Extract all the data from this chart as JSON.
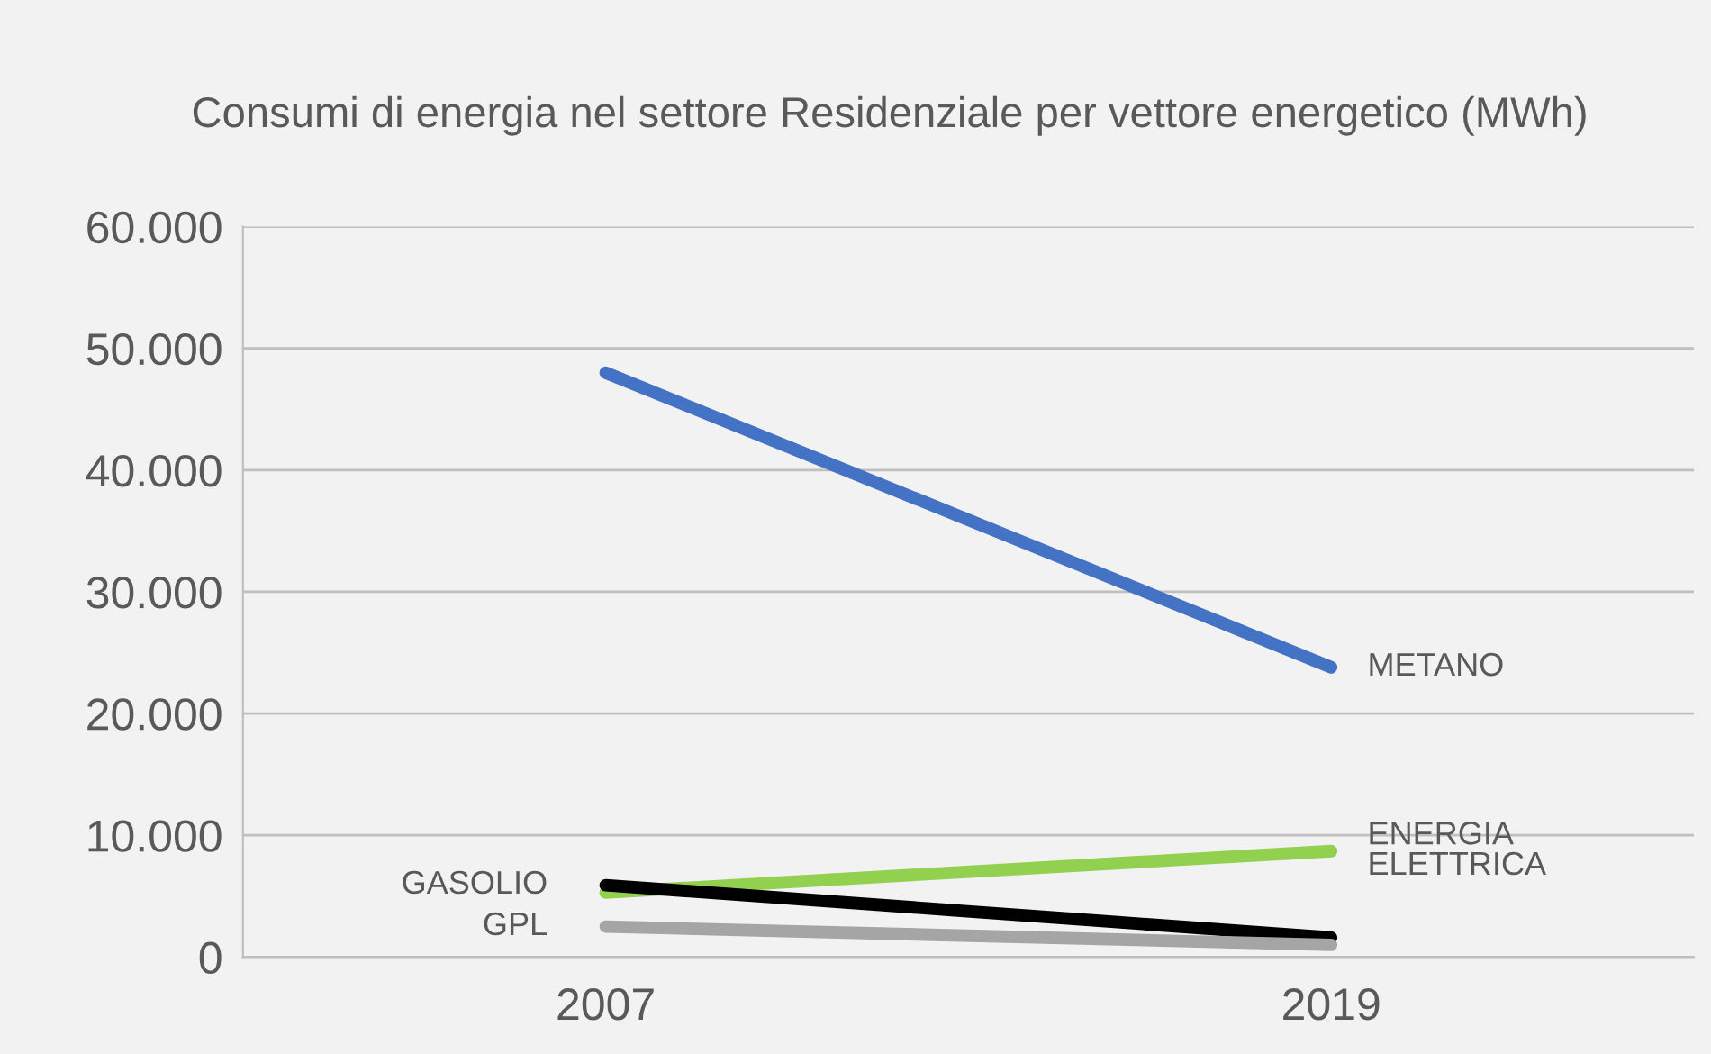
{
  "chart_data": {
    "type": "line",
    "title": "Consumi di energia nel settore Residenziale per vettore energetico (MWh)",
    "categories": [
      "2007",
      "2019"
    ],
    "series": [
      {
        "name": "METANO",
        "color": "#4472c4",
        "values": [
          48000,
          23800
        ]
      },
      {
        "name": "ENERGIA ELETTRICA",
        "color": "#92d050",
        "values": [
          5300,
          8700
        ]
      },
      {
        "name": "GASOLIO",
        "color": "#000000",
        "values": [
          5900,
          1600
        ]
      },
      {
        "name": "GPL",
        "color": "#a5a5a5",
        "values": [
          2500,
          1000
        ]
      }
    ],
    "ylim": [
      0,
      60000
    ],
    "yticks": [
      {
        "value": 0,
        "label": "0"
      },
      {
        "value": 10000,
        "label": "10.000"
      },
      {
        "value": 20000,
        "label": "20.000"
      },
      {
        "value": 30000,
        "label": "30.000"
      },
      {
        "value": 40000,
        "label": "40.000"
      },
      {
        "value": 50000,
        "label": "50.000"
      },
      {
        "value": 60000,
        "label": "60.000"
      }
    ],
    "grid": "y",
    "legend": false,
    "marker": "none",
    "line_style": "solid"
  }
}
